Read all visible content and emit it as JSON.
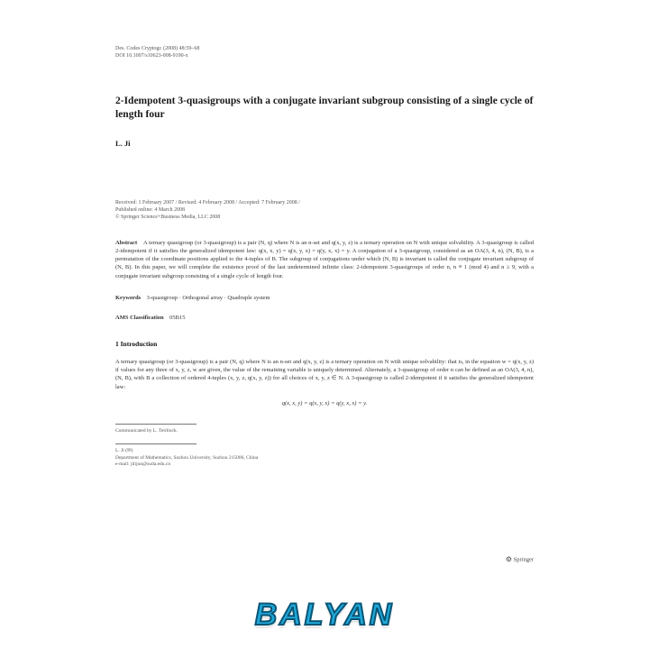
{
  "journal_meta": {
    "line1": "Des. Codes Cryptogr. (2008) 48:59–68",
    "line2": "DOI 10.1007/s10623-008-9190-x"
  },
  "title": "2-Idempotent 3-quasigroups with a conjugate invariant subgroup consisting of a single cycle of length four",
  "author": "L. Ji",
  "received": {
    "line1": "Received: 1 February 2007 / Revised: 4 February 2008 / Accepted: 7 February 2008 /",
    "line2": "Published online: 4 March 2008",
    "line3": "© Springer Science+Business Media, LLC 2008"
  },
  "abstract": {
    "label": "Abstract",
    "text": "A ternary quasigroup (or 3-quasigroup) is a pair (N, q) where N is an n-set and q(x, y, z) is a ternary operation on N with unique solvability. A 3-quasigroup is called 2-idempotent if it satisfies the generalized idempotent law: q(x, x, y) = q(x, y, x) = q(y, x, x) = y. A conjugation of a 3-quasigroup, considered as an OA(3, 4, n), (N, B), is a permutation of the coordinate positions applied to the 4-tuples of B. The subgroup of conjugations under which (N, B) is invariant is called the conjugate invariant subgroup of (N, B). In this paper, we will complete the existence proof of the last undetermined infinite class: 2-idempotent 3-quasigroups of order n, n ≡ 1 (mod 4) and n ≥ 9, with a conjugate invariant subgroup consisting of a single cycle of length four."
  },
  "keywords": {
    "label": "Keywords",
    "text": "3-quasigroup · Orthogonal array · Quadruple system"
  },
  "ams": {
    "label": "AMS Classification",
    "text": "05B15"
  },
  "section": "1 Introduction",
  "intro": "A ternary quasigroup (or 3-quasigroup) is a pair (N, q) where N is an n-set and q(x, y, z) is a ternary operation on N with unique solvability: that is, in the equation w = q(x, y, z) if values for any three of x, y, z, w are given, the value of the remaining variable is uniquely determined. Alternately, a 3-quasigroup of order n can be defined as an OA(3, 4, n), (N, B), with B a collection of ordered 4-tuples (x, y, z, q(x, y, z)) for all choices of x, y, z ∈ N. A 3-quasigroup is called 2-idempotent if it satisfies the generalized idempotent law:",
  "equation": "q(x, x, y) = q(x, y, x) = q(y, x, x) = y.",
  "communicated": "Communicated by L. Teirlinck.",
  "affiliation": {
    "name": "L. Ji (✉)",
    "dept": "Department of Mathematics, Suzhou University, Suzhou 215006, China",
    "email": "e-mail: jilijun@suda.edu.cn"
  },
  "publisher": "Springer",
  "watermark": "BALYAN",
  "colors": {
    "page_bg": "#ffffff",
    "text": "#2a2a2a",
    "meta": "#555555",
    "watermark_fill": "#1fa8d8",
    "watermark_stroke": "#0a5575"
  }
}
